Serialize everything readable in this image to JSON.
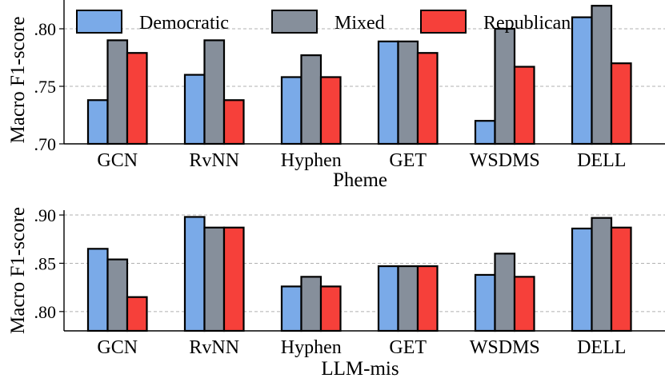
{
  "colors": {
    "Democratic": "#7aaae8",
    "Mixed": "#868f9b",
    "Republican": "#f6403a",
    "edge": "#000000",
    "grid": "#b0b0b0"
  },
  "legend": {
    "entries": [
      "Democratic",
      "Mixed",
      "Republican"
    ],
    "placement": "top-center"
  },
  "chart_data": [
    {
      "type": "bar",
      "title": "",
      "xlabel": "Pheme",
      "ylabel": "Macro F1-score",
      "ylim": [
        0.7,
        0.825
      ],
      "yticks": [
        0.7,
        0.75,
        0.8
      ],
      "ytick_labels": [
        ".70",
        ".75",
        ".80"
      ],
      "grid": "horizontal dashed",
      "categories": [
        "GCN",
        "RvNN",
        "Hyphen",
        "GET",
        "WSDMS",
        "DELL"
      ],
      "series": [
        {
          "name": "Democratic",
          "values": [
            0.738,
            0.76,
            0.758,
            0.789,
            0.72,
            0.81
          ]
        },
        {
          "name": "Mixed",
          "values": [
            0.79,
            0.79,
            0.777,
            0.789,
            0.8,
            0.82
          ]
        },
        {
          "name": "Republican",
          "values": [
            0.779,
            0.738,
            0.758,
            0.779,
            0.767,
            0.77
          ]
        }
      ]
    },
    {
      "type": "bar",
      "title": "",
      "xlabel": "LLM-mis",
      "ylabel": "Macro F1-score",
      "ylim": [
        0.78,
        0.905
      ],
      "yticks": [
        0.8,
        0.85,
        0.9
      ],
      "ytick_labels": [
        ".80",
        ".85",
        ".90"
      ],
      "grid": "horizontal dashed",
      "categories": [
        "GCN",
        "RvNN",
        "Hyphen",
        "GET",
        "WSDMS",
        "DELL"
      ],
      "series": [
        {
          "name": "Democratic",
          "values": [
            0.865,
            0.898,
            0.826,
            0.847,
            0.838,
            0.886
          ]
        },
        {
          "name": "Mixed",
          "values": [
            0.854,
            0.887,
            0.836,
            0.847,
            0.86,
            0.897
          ]
        },
        {
          "name": "Republican",
          "values": [
            0.815,
            0.887,
            0.826,
            0.847,
            0.836,
            0.887
          ]
        }
      ]
    }
  ]
}
